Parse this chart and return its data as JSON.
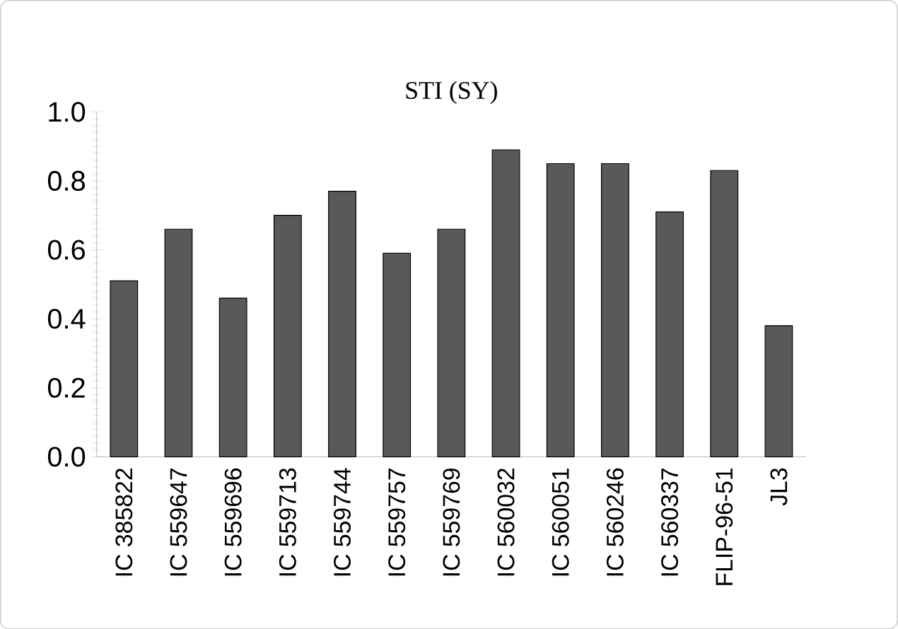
{
  "chart_data": {
    "type": "bar",
    "title": "STI (SY)",
    "categories": [
      "IC 385822",
      "IC 559647",
      "IC 559696",
      "IC 559713",
      "IC 559744",
      "IC 559757",
      "IC 559769",
      "IC 560032",
      "IC 560051",
      "IC 560246",
      "IC 560337",
      "FLIP-96-51",
      "JL3"
    ],
    "values": [
      0.51,
      0.66,
      0.46,
      0.7,
      0.77,
      0.59,
      0.66,
      0.89,
      0.85,
      0.85,
      0.71,
      0.83,
      0.38
    ],
    "color": "#595959",
    "ylim": [
      0,
      1
    ],
    "yticks": [
      {
        "value": 0,
        "label": "0.0"
      },
      {
        "value": 0.2,
        "label": "0.2"
      },
      {
        "value": 0.4,
        "label": "0.4"
      },
      {
        "value": 0.6,
        "label": "0.6"
      },
      {
        "value": 0.8,
        "label": "0.8"
      },
      {
        "value": 1,
        "label": "1.0"
      }
    ],
    "grid": false,
    "legend": false
  }
}
